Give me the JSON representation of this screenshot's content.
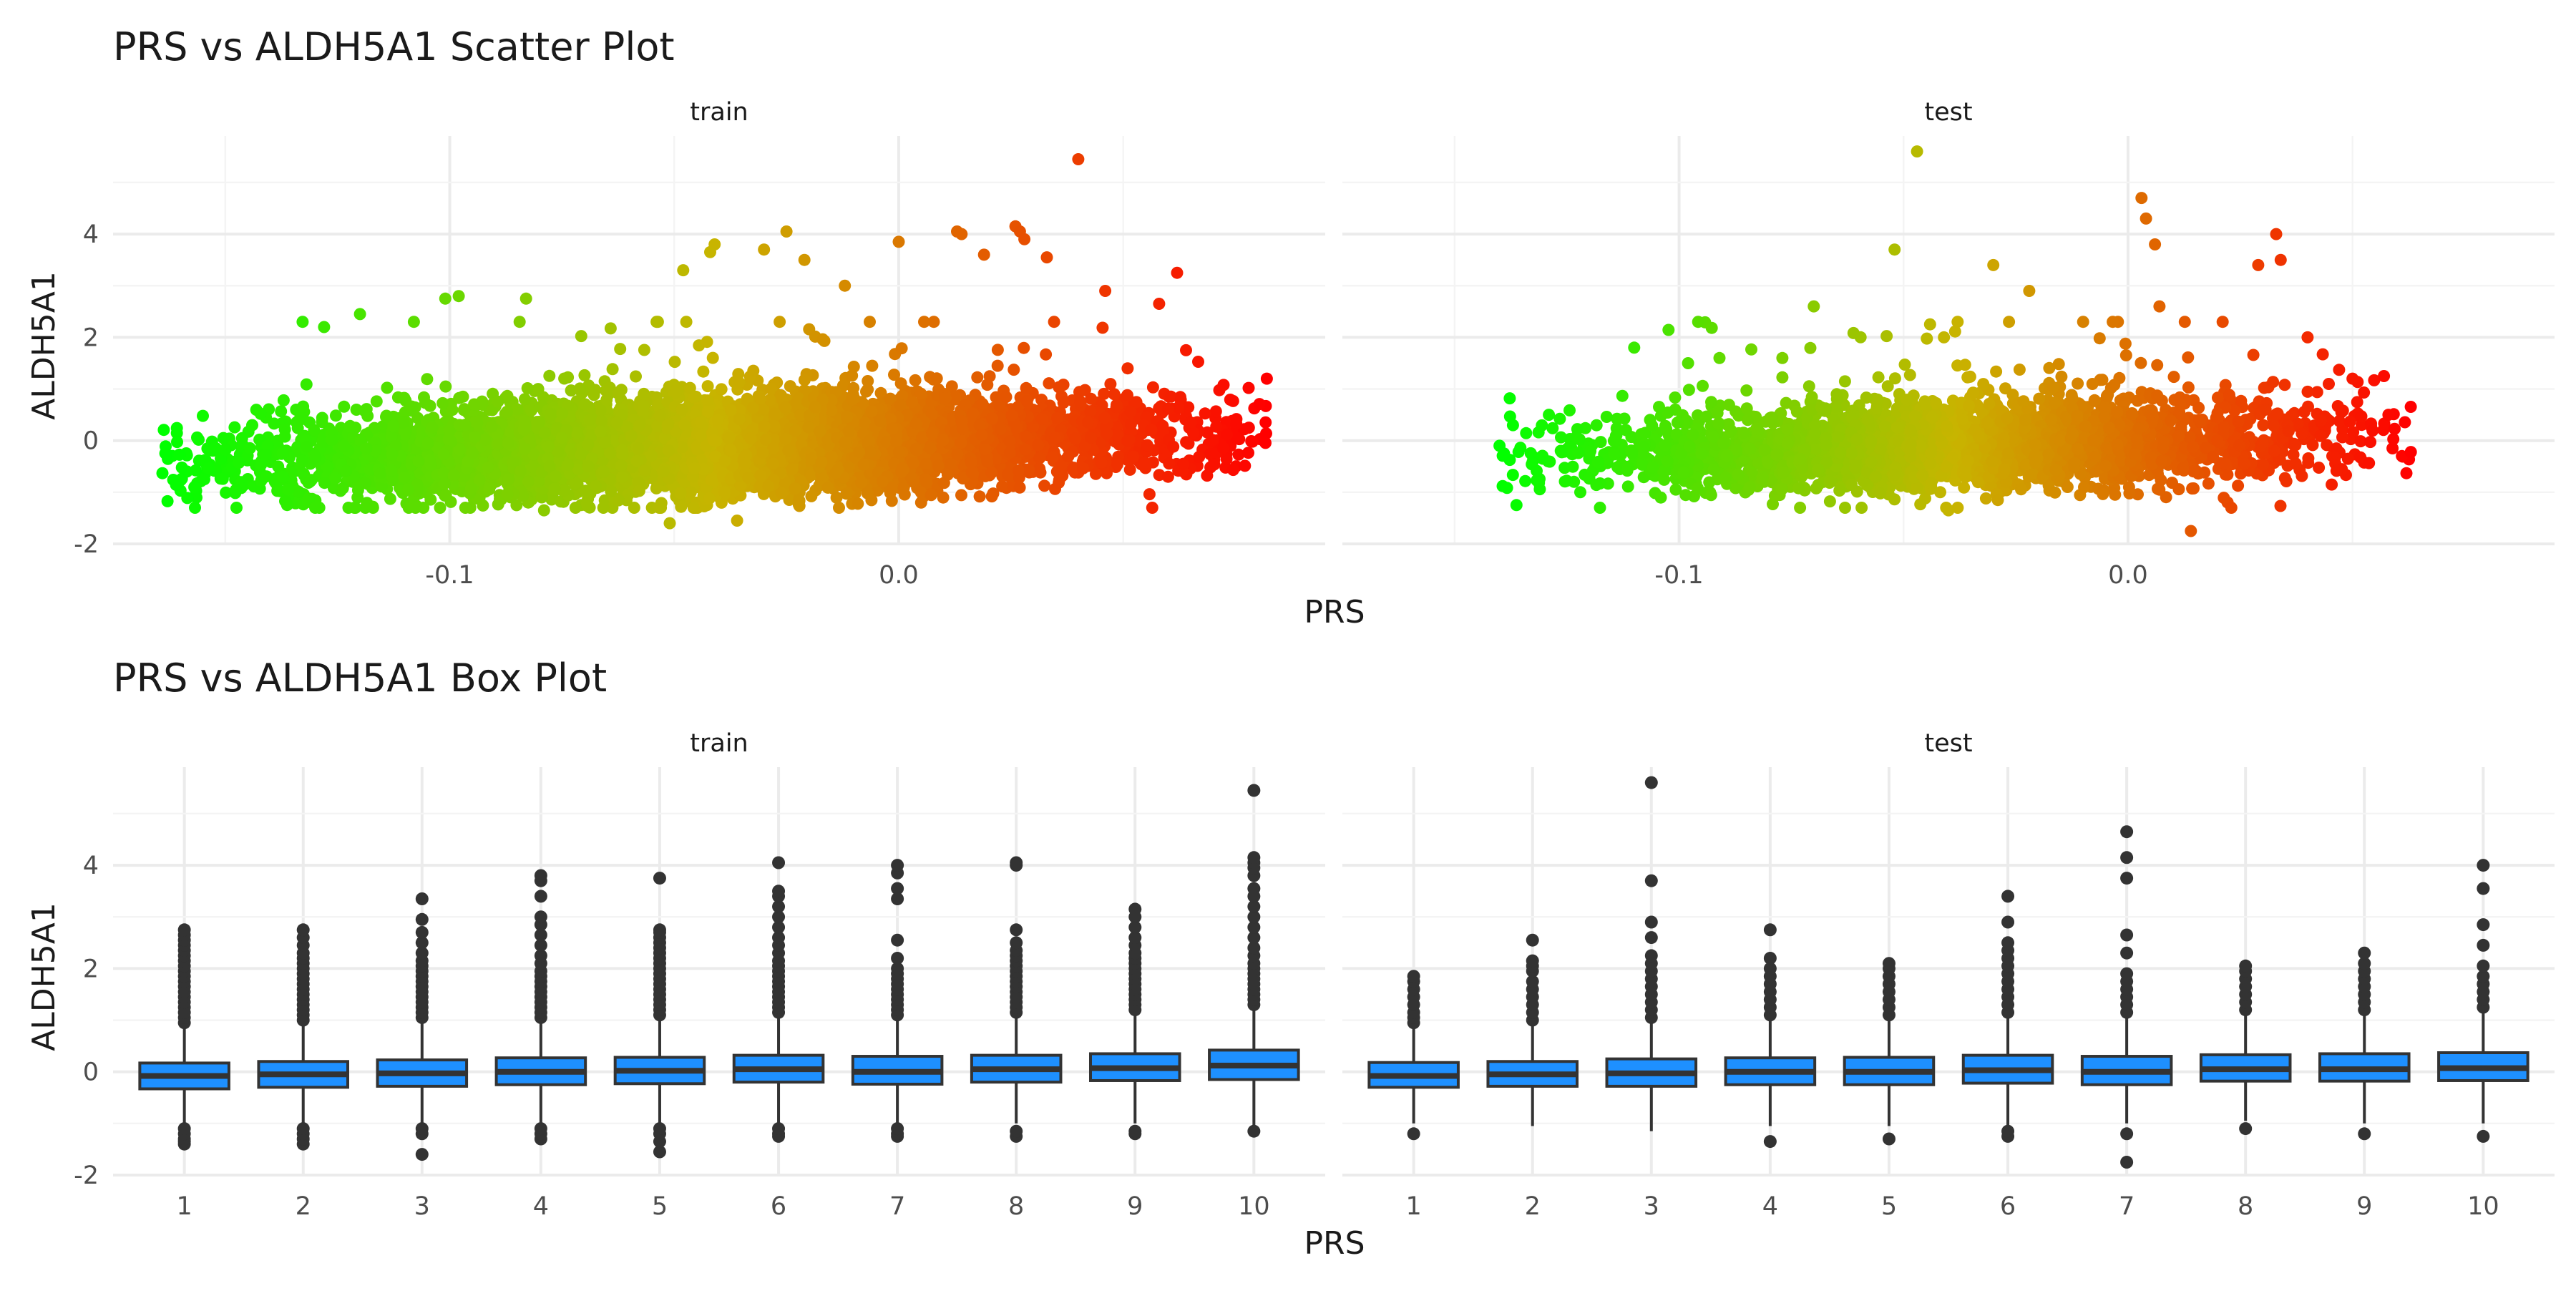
{
  "colors": {
    "grid": "#ebebeb",
    "box_fill": "#1e90ff",
    "box_line": "#333333",
    "outlier": "#333333",
    "gradient_low": "#00ff00",
    "gradient_mid": "#c8b400",
    "gradient_high": "#ff0000"
  },
  "chart_data": [
    {
      "type": "scatter",
      "title": "PRS vs ALDH5A1 Scatter Plot",
      "xlabel": "PRS",
      "ylabel": "ALDH5A1",
      "ylim": [
        -2.0,
        5.9
      ],
      "yticks": [
        -2,
        0,
        2,
        4
      ],
      "ytick_labels": [
        "-2",
        "0",
        "2",
        "4"
      ],
      "color_scale": "PRS mapped low (green) to high (red)",
      "grid": true,
      "facets": [
        {
          "label": "train",
          "xlim": [
            -0.175,
            0.095
          ],
          "xticks": [
            -0.1,
            0.0
          ],
          "xtick_labels": [
            "-0.1",
            "0.0"
          ],
          "n_points_approx": 6000,
          "x_range": [
            -0.164,
            0.082
          ],
          "cloud_mean": 0.0,
          "cloud_sd": 0.45,
          "slope": 2.5,
          "extreme_points": [
            {
              "x": -0.164,
              "y": -0.63
            },
            {
              "x": -0.155,
              "y": 0.48
            },
            {
              "x": -0.15,
              "y": -0.18
            },
            {
              "x": -0.147,
              "y": -0.43
            },
            {
              "x": -0.144,
              "y": 0.3
            },
            {
              "x": -0.141,
              "y": -0.27
            },
            {
              "x": -0.137,
              "y": 0.78
            },
            {
              "x": -0.128,
              "y": 2.2
            },
            {
              "x": -0.12,
              "y": 2.45
            },
            {
              "x": -0.108,
              "y": 2.3
            },
            {
              "x": -0.101,
              "y": 2.75
            },
            {
              "x": -0.098,
              "y": 2.8
            },
            {
              "x": -0.083,
              "y": 2.75
            },
            {
              "x": -0.079,
              "y": -1.35
            },
            {
              "x": -0.121,
              "y": -1.3
            },
            {
              "x": -0.051,
              "y": -1.6
            },
            {
              "x": -0.048,
              "y": 3.3
            },
            {
              "x": -0.041,
              "y": 3.8
            },
            {
              "x": -0.042,
              "y": 3.65
            },
            {
              "x": -0.036,
              "y": -1.55
            },
            {
              "x": -0.03,
              "y": 3.7
            },
            {
              "x": -0.025,
              "y": 4.05
            },
            {
              "x": -0.021,
              "y": 3.5
            },
            {
              "x": -0.012,
              "y": 3.0
            },
            {
              "x": 0.0,
              "y": 3.85
            },
            {
              "x": 0.013,
              "y": 4.05
            },
            {
              "x": 0.014,
              "y": 4.0
            },
            {
              "x": 0.019,
              "y": 3.6
            },
            {
              "x": 0.026,
              "y": 4.15
            },
            {
              "x": 0.027,
              "y": 4.05
            },
            {
              "x": 0.028,
              "y": 3.9
            },
            {
              "x": 0.033,
              "y": 3.55
            },
            {
              "x": 0.04,
              "y": 5.45
            },
            {
              "x": 0.046,
              "y": 2.9
            },
            {
              "x": 0.048,
              "y": 0.9
            },
            {
              "x": 0.051,
              "y": 1.4
            },
            {
              "x": 0.058,
              "y": 2.65
            },
            {
              "x": 0.062,
              "y": 3.25
            },
            {
              "x": 0.064,
              "y": 1.75
            },
            {
              "x": 0.065,
              "y": 0.35
            },
            {
              "x": 0.06,
              "y": 0.62
            },
            {
              "x": 0.082,
              "y": 1.2
            },
            {
              "x": 0.06,
              "y": -0.7
            },
            {
              "x": 0.005,
              "y": -1.2
            }
          ]
        },
        {
          "label": "test",
          "xlim": [
            -0.175,
            0.095
          ],
          "xticks": [
            -0.1,
            0.0
          ],
          "xtick_labels": [
            "-0.1",
            "0.0"
          ],
          "n_points_approx": 3000,
          "x_range": [
            -0.14,
            0.063
          ],
          "cloud_mean": 0.0,
          "cloud_sd": 0.42,
          "slope": 2.5,
          "extreme_points": [
            {
              "x": -0.14,
              "y": -0.1
            },
            {
              "x": -0.139,
              "y": -0.25
            },
            {
              "x": -0.137,
              "y": 0.3
            },
            {
              "x": -0.129,
              "y": 0.5
            },
            {
              "x": -0.122,
              "y": -1.0
            },
            {
              "x": -0.11,
              "y": 1.8
            },
            {
              "x": -0.098,
              "y": 1.5
            },
            {
              "x": -0.091,
              "y": 1.6
            },
            {
              "x": -0.077,
              "y": 1.6
            },
            {
              "x": -0.07,
              "y": 2.6
            },
            {
              "x": -0.052,
              "y": 3.7
            },
            {
              "x": -0.047,
              "y": 5.6
            },
            {
              "x": -0.041,
              "y": 2.0
            },
            {
              "x": -0.04,
              "y": -1.35
            },
            {
              "x": -0.03,
              "y": 3.4
            },
            {
              "x": -0.029,
              "y": -1.15
            },
            {
              "x": -0.022,
              "y": 2.9
            },
            {
              "x": -0.01,
              "y": 2.3
            },
            {
              "x": 0.003,
              "y": 4.7
            },
            {
              "x": 0.004,
              "y": 4.3
            },
            {
              "x": 0.006,
              "y": 3.8
            },
            {
              "x": 0.007,
              "y": 2.6
            },
            {
              "x": 0.014,
              "y": -1.75
            },
            {
              "x": 0.023,
              "y": -1.3
            },
            {
              "x": 0.029,
              "y": 3.4
            },
            {
              "x": 0.033,
              "y": 4.0
            },
            {
              "x": 0.034,
              "y": 3.5
            },
            {
              "x": 0.04,
              "y": 2.0
            },
            {
              "x": 0.05,
              "y": 1.2
            },
            {
              "x": 0.057,
              "y": 1.25
            },
            {
              "x": 0.058,
              "y": 0.5
            },
            {
              "x": 0.061,
              "y": -0.3
            },
            {
              "x": 0.062,
              "y": -0.63
            },
            {
              "x": 0.063,
              "y": -0.22
            }
          ]
        }
      ]
    },
    {
      "type": "box",
      "title": "PRS vs ALDH5A1 Box Plot",
      "xlabel": "PRS",
      "ylabel": "ALDH5A1",
      "ylim": [
        -2.0,
        5.9
      ],
      "yticks": [
        -2,
        0,
        2,
        4
      ],
      "ytick_labels": [
        "-2",
        "0",
        "2",
        "4"
      ],
      "categories": [
        "1",
        "2",
        "3",
        "4",
        "5",
        "6",
        "7",
        "8",
        "9",
        "10"
      ],
      "grid": true,
      "facets": [
        {
          "label": "train",
          "boxes": [
            {
              "q1": -0.33,
              "median": -0.08,
              "q3": 0.17,
              "lo": -1.05,
              "hi": 0.9,
              "outliers": [
                -1.4,
                -1.35,
                -1.3,
                -1.2,
                -1.1,
                0.95,
                1.05,
                1.15,
                1.25,
                1.35,
                1.45,
                1.55,
                1.65,
                1.75,
                1.85,
                1.95,
                2.05,
                2.15,
                2.25,
                2.35,
                2.45,
                2.55,
                2.65,
                2.75
              ]
            },
            {
              "q1": -0.3,
              "median": -0.05,
              "q3": 0.2,
              "lo": -1.05,
              "hi": 0.95,
              "outliers": [
                -1.4,
                -1.3,
                -1.2,
                -1.1,
                1.0,
                1.1,
                1.2,
                1.3,
                1.4,
                1.5,
                1.6,
                1.7,
                1.8,
                1.9,
                2.0,
                2.1,
                2.2,
                2.3,
                2.45,
                2.6,
                2.75
              ]
            },
            {
              "q1": -0.28,
              "median": -0.03,
              "q3": 0.23,
              "lo": -1.0,
              "hi": 1.0,
              "outliers": [
                -1.6,
                -1.2,
                -1.1,
                1.05,
                1.15,
                1.25,
                1.35,
                1.45,
                1.55,
                1.65,
                1.75,
                1.85,
                1.95,
                2.05,
                2.15,
                2.3,
                2.5,
                2.7,
                2.95,
                3.35
              ]
            },
            {
              "q1": -0.25,
              "median": 0.0,
              "q3": 0.27,
              "lo": -1.0,
              "hi": 1.0,
              "outliers": [
                -1.3,
                -1.2,
                -1.1,
                1.05,
                1.15,
                1.25,
                1.35,
                1.45,
                1.55,
                1.65,
                1.75,
                1.85,
                1.95,
                2.1,
                2.25,
                2.45,
                2.65,
                2.85,
                3.0,
                3.4,
                3.7,
                3.8
              ]
            },
            {
              "q1": -0.23,
              "median": 0.02,
              "q3": 0.28,
              "lo": -1.0,
              "hi": 1.05,
              "outliers": [
                -1.55,
                -1.35,
                -1.2,
                -1.1,
                1.1,
                1.2,
                1.3,
                1.4,
                1.5,
                1.6,
                1.7,
                1.8,
                1.9,
                2.0,
                2.1,
                2.2,
                2.3,
                2.4,
                2.5,
                2.6,
                2.7,
                2.75,
                3.75
              ]
            },
            {
              "q1": -0.2,
              "median": 0.05,
              "q3": 0.32,
              "lo": -1.0,
              "hi": 1.1,
              "outliers": [
                -1.25,
                -1.2,
                -1.1,
                1.15,
                1.25,
                1.35,
                1.45,
                1.55,
                1.65,
                1.75,
                1.85,
                1.95,
                2.05,
                2.15,
                2.3,
                2.45,
                2.6,
                2.8,
                3.0,
                3.2,
                3.4,
                3.5,
                4.05
              ]
            },
            {
              "q1": -0.24,
              "median": 0.0,
              "q3": 0.3,
              "lo": -1.0,
              "hi": 1.05,
              "outliers": [
                -1.25,
                -1.2,
                -1.1,
                1.1,
                1.2,
                1.3,
                1.4,
                1.5,
                1.6,
                1.7,
                1.8,
                1.9,
                2.0,
                2.2,
                2.55,
                3.35,
                3.55,
                3.85,
                4.0
              ]
            },
            {
              "q1": -0.2,
              "median": 0.05,
              "q3": 0.32,
              "lo": -1.0,
              "hi": 1.1,
              "outliers": [
                -1.25,
                -1.15,
                1.15,
                1.25,
                1.35,
                1.45,
                1.55,
                1.65,
                1.75,
                1.85,
                1.95,
                2.05,
                2.15,
                2.25,
                2.35,
                2.5,
                2.75,
                4.0,
                4.05
              ]
            },
            {
              "q1": -0.17,
              "median": 0.07,
              "q3": 0.35,
              "lo": -1.0,
              "hi": 1.15,
              "outliers": [
                -1.2,
                -1.15,
                1.2,
                1.3,
                1.4,
                1.5,
                1.6,
                1.7,
                1.8,
                1.9,
                2.0,
                2.1,
                2.2,
                2.3,
                2.45,
                2.6,
                2.8,
                3.0,
                3.15
              ]
            },
            {
              "q1": -0.15,
              "median": 0.12,
              "q3": 0.42,
              "lo": -1.05,
              "hi": 1.25,
              "outliers": [
                -1.15,
                1.3,
                1.4,
                1.5,
                1.6,
                1.7,
                1.8,
                1.9,
                2.0,
                2.1,
                2.25,
                2.4,
                2.6,
                2.8,
                3.0,
                3.2,
                3.4,
                3.55,
                3.8,
                3.95,
                4.05,
                4.15,
                5.45
              ]
            }
          ]
        },
        {
          "label": "test",
          "boxes": [
            {
              "q1": -0.3,
              "median": -0.08,
              "q3": 0.18,
              "lo": -1.0,
              "hi": 0.85,
              "outliers": [
                -1.2,
                0.95,
                1.05,
                1.15,
                1.3,
                1.45,
                1.6,
                1.75,
                1.85
              ]
            },
            {
              "q1": -0.28,
              "median": -0.05,
              "q3": 0.2,
              "lo": -1.05,
              "hi": 0.9,
              "outliers": [
                1.0,
                1.15,
                1.3,
                1.45,
                1.6,
                1.75,
                1.95,
                2.05,
                2.15,
                2.55
              ]
            },
            {
              "q1": -0.28,
              "median": -0.03,
              "q3": 0.25,
              "lo": -1.15,
              "hi": 1.0,
              "outliers": [
                1.05,
                1.2,
                1.35,
                1.5,
                1.65,
                1.8,
                1.95,
                2.1,
                2.25,
                2.6,
                2.9,
                3.7,
                5.6
              ]
            },
            {
              "q1": -0.25,
              "median": 0.0,
              "q3": 0.27,
              "lo": -1.05,
              "hi": 1.0,
              "outliers": [
                -1.35,
                1.1,
                1.25,
                1.4,
                1.55,
                1.7,
                1.85,
                2.0,
                2.2,
                2.75
              ]
            },
            {
              "q1": -0.25,
              "median": 0.0,
              "q3": 0.28,
              "lo": -1.05,
              "hi": 1.0,
              "outliers": [
                -1.3,
                1.1,
                1.25,
                1.4,
                1.55,
                1.7,
                1.85,
                2.0,
                2.1
              ]
            },
            {
              "q1": -0.22,
              "median": 0.03,
              "q3": 0.32,
              "lo": -1.05,
              "hi": 1.05,
              "outliers": [
                -1.25,
                -1.15,
                1.15,
                1.3,
                1.45,
                1.6,
                1.75,
                1.9,
                2.05,
                2.2,
                2.35,
                2.5,
                2.9,
                3.4
              ]
            },
            {
              "q1": -0.25,
              "median": 0.0,
              "q3": 0.3,
              "lo": -1.0,
              "hi": 1.05,
              "outliers": [
                -1.75,
                -1.2,
                1.15,
                1.3,
                1.45,
                1.6,
                1.75,
                1.9,
                2.3,
                2.65,
                3.75,
                4.15,
                4.65
              ]
            },
            {
              "q1": -0.18,
              "median": 0.05,
              "q3": 0.33,
              "lo": -0.95,
              "hi": 1.1,
              "outliers": [
                -1.1,
                1.2,
                1.35,
                1.5,
                1.65,
                1.8,
                1.95,
                2.05
              ]
            },
            {
              "q1": -0.18,
              "median": 0.05,
              "q3": 0.35,
              "lo": -1.0,
              "hi": 1.1,
              "outliers": [
                -1.2,
                1.2,
                1.35,
                1.5,
                1.65,
                1.8,
                1.95,
                2.1,
                2.3
              ]
            },
            {
              "q1": -0.17,
              "median": 0.07,
              "q3": 0.37,
              "lo": -1.0,
              "hi": 1.15,
              "outliers": [
                -1.25,
                1.25,
                1.4,
                1.55,
                1.7,
                1.85,
                2.05,
                2.45,
                2.85,
                3.55,
                4.0
              ]
            }
          ]
        }
      ]
    }
  ]
}
